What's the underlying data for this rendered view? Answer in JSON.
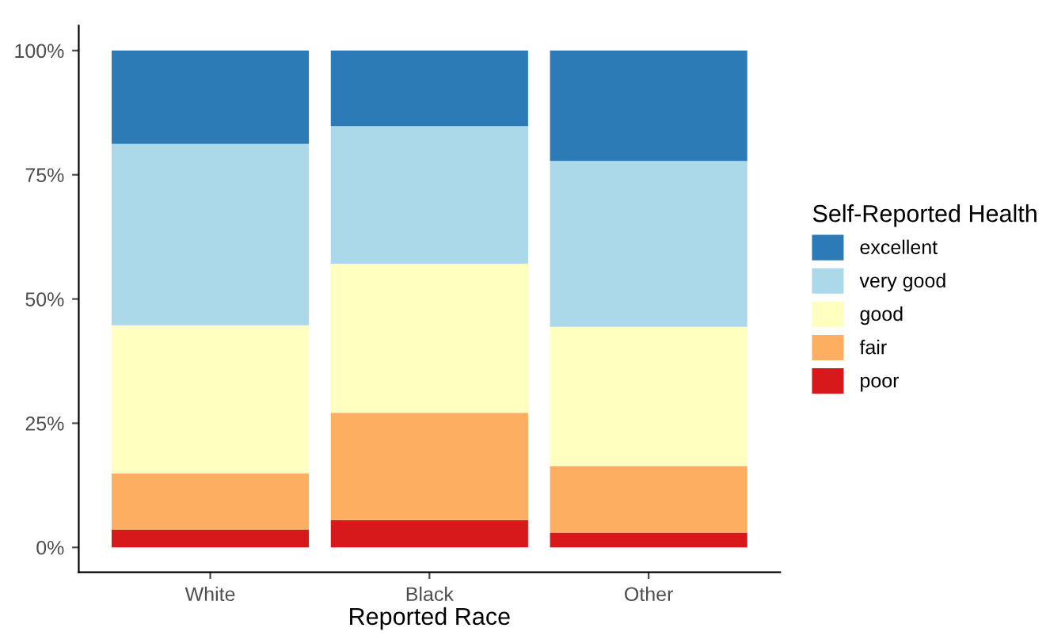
{
  "chart_data": {
    "type": "bar",
    "stacked": true,
    "xlabel": "Reported Race",
    "legend_title": "Self-Reported Health",
    "legend": "right",
    "grid": false,
    "categories": [
      "White",
      "Black",
      "Other"
    ],
    "series": [
      {
        "name": "poor",
        "color": "#d7191c",
        "values": [
          3.6,
          5.5,
          3.0
        ]
      },
      {
        "name": "fair",
        "color": "#fdae61",
        "values": [
          11.3,
          21.6,
          13.4
        ]
      },
      {
        "name": "good",
        "color": "#ffffbf",
        "values": [
          29.8,
          30.0,
          28.0
        ]
      },
      {
        "name": "very good",
        "color": "#abd9e9",
        "values": [
          36.5,
          27.7,
          33.4
        ]
      },
      {
        "name": "excellent",
        "color": "#2c7bb6",
        "values": [
          18.8,
          15.2,
          22.2
        ]
      }
    ],
    "ylim": [
      -5,
      105
    ],
    "yticks": [
      {
        "value": 0,
        "label": "0%"
      },
      {
        "value": 25,
        "label": "25%"
      },
      {
        "value": 50,
        "label": "50%"
      },
      {
        "value": 75,
        "label": "75%"
      },
      {
        "value": 100,
        "label": "100%"
      }
    ]
  }
}
